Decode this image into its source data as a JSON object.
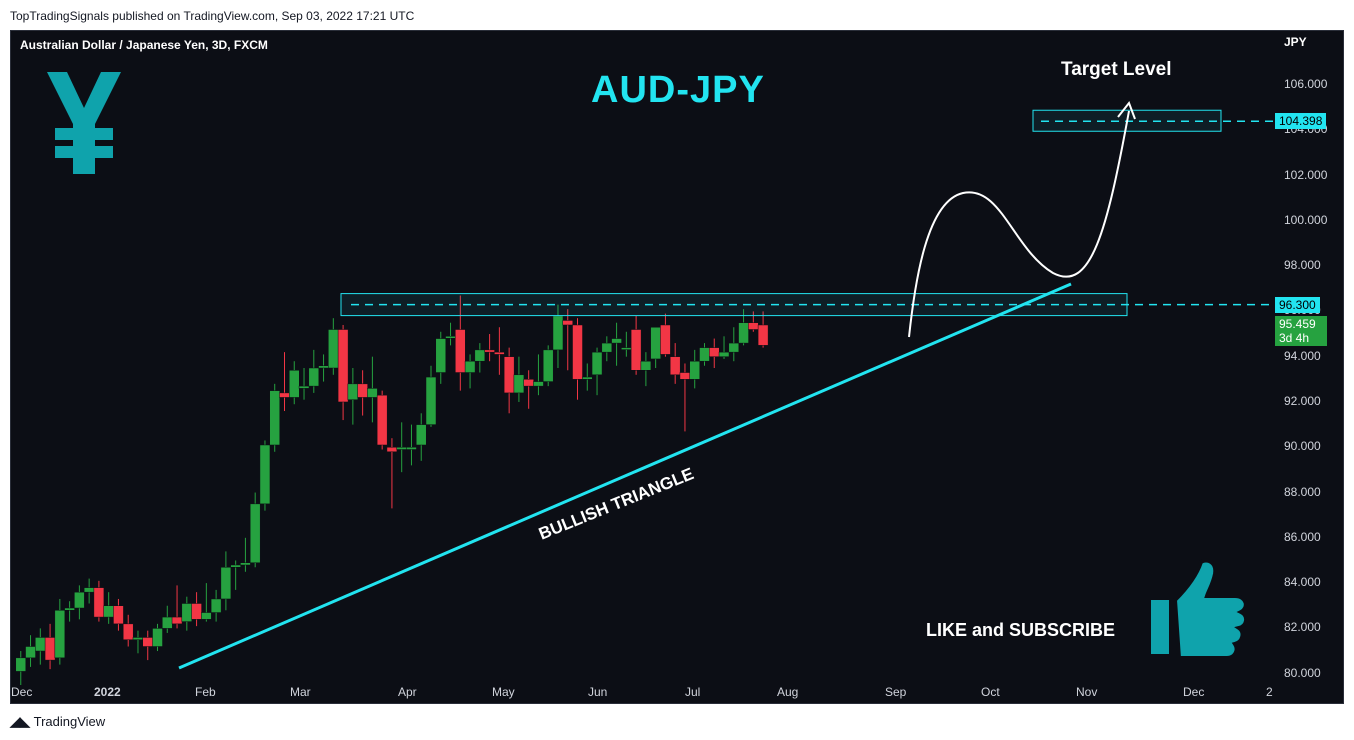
{
  "header": {
    "publish_line": "TopTradingSignals published on TradingView.com, Sep 03, 2022 17:21 UTC"
  },
  "chart_header": {
    "symbol_line": "Australian Dollar / Japanese Yen, 3D, FXCM"
  },
  "annotations": {
    "headline": "AUD-JPY",
    "target_label": "Target Level",
    "pattern_label": "BULLISH TRIANGLE",
    "cta_label": "LIKE and SUBSCRIBE"
  },
  "icons": {
    "currency_symbol": "yen-icon",
    "cta_icon": "thumbs-up-icon",
    "brand": "tradingview-logo-icon"
  },
  "footer": {
    "brand": "TradingView"
  },
  "colors": {
    "background": "#0c0e15",
    "up_candle": "#26a240",
    "down_candle": "#f23645",
    "accent_cyan": "#22e4f0",
    "annotation_white": "#ffffff"
  },
  "chart_data": {
    "type": "candlestick",
    "y_axis_unit": "JPY",
    "ylim": [
      79.5,
      107.5
    ],
    "y_ticks": [
      "80.000",
      "82.000",
      "84.000",
      "86.000",
      "88.000",
      "90.000",
      "92.000",
      "94.000",
      "96.000",
      "98.000",
      "100.000",
      "102.000",
      "104.000",
      "106.000"
    ],
    "x_ticks": [
      "Dec",
      "2022",
      "Feb",
      "Mar",
      "Apr",
      "May",
      "Jun",
      "Jul",
      "Aug",
      "Sep",
      "Oct",
      "Nov",
      "Dec",
      "2"
    ],
    "price_labels": {
      "target": "104.398",
      "resistance": "96.300",
      "last": "95.459",
      "countdown": "3d 4h"
    },
    "levels": {
      "target_level": 104.398,
      "resistance_level": 96.3
    },
    "candles": [
      {
        "date": "2021-12-01",
        "o": 80.1,
        "h": 81.0,
        "l": 79.5,
        "c": 80.7
      },
      {
        "date": "2021-12-04",
        "o": 80.7,
        "h": 81.7,
        "l": 80.3,
        "c": 81.2
      },
      {
        "date": "2021-12-07",
        "o": 81.0,
        "h": 82.0,
        "l": 80.4,
        "c": 81.6
      },
      {
        "date": "2021-12-10",
        "o": 81.6,
        "h": 82.2,
        "l": 80.2,
        "c": 80.6
      },
      {
        "date": "2021-12-13",
        "o": 80.7,
        "h": 83.3,
        "l": 80.4,
        "c": 82.8
      },
      {
        "date": "2021-12-16",
        "o": 82.8,
        "h": 83.2,
        "l": 82.3,
        "c": 82.9
      },
      {
        "date": "2021-12-19",
        "o": 82.9,
        "h": 83.9,
        "l": 82.4,
        "c": 83.6
      },
      {
        "date": "2021-12-22",
        "o": 83.6,
        "h": 84.2,
        "l": 83.1,
        "c": 83.8
      },
      {
        "date": "2021-12-25",
        "o": 83.8,
        "h": 84.1,
        "l": 82.3,
        "c": 82.5
      },
      {
        "date": "2021-12-28",
        "o": 82.5,
        "h": 83.6,
        "l": 82.2,
        "c": 83.0
      },
      {
        "date": "2021-12-31",
        "o": 83.0,
        "h": 83.3,
        "l": 81.9,
        "c": 82.2
      },
      {
        "date": "2022-01-03",
        "o": 82.2,
        "h": 82.6,
        "l": 81.2,
        "c": 81.5
      },
      {
        "date": "2022-01-06",
        "o": 81.5,
        "h": 81.9,
        "l": 80.9,
        "c": 81.6
      },
      {
        "date": "2022-01-09",
        "o": 81.6,
        "h": 81.9,
        "l": 80.6,
        "c": 81.2
      },
      {
        "date": "2022-01-12",
        "o": 81.2,
        "h": 82.2,
        "l": 81.0,
        "c": 82.0
      },
      {
        "date": "2022-01-15",
        "o": 82.0,
        "h": 83.0,
        "l": 81.8,
        "c": 82.5
      },
      {
        "date": "2022-01-18",
        "o": 82.5,
        "h": 83.9,
        "l": 82.0,
        "c": 82.2
      },
      {
        "date": "2022-01-21",
        "o": 82.3,
        "h": 83.4,
        "l": 81.9,
        "c": 83.1
      },
      {
        "date": "2022-01-24",
        "o": 83.1,
        "h": 83.6,
        "l": 82.1,
        "c": 82.4
      },
      {
        "date": "2022-01-27",
        "o": 82.4,
        "h": 84.0,
        "l": 82.3,
        "c": 82.7
      },
      {
        "date": "2022-01-30",
        "o": 82.7,
        "h": 83.7,
        "l": 82.3,
        "c": 83.3
      },
      {
        "date": "2022-02-02",
        "o": 83.3,
        "h": 85.4,
        "l": 82.8,
        "c": 84.7
      },
      {
        "date": "2022-02-05",
        "o": 84.7,
        "h": 85.0,
        "l": 83.7,
        "c": 84.8
      },
      {
        "date": "2022-02-08",
        "o": 84.8,
        "h": 86.0,
        "l": 84.5,
        "c": 84.9
      },
      {
        "date": "2022-02-11",
        "o": 84.9,
        "h": 88.0,
        "l": 84.7,
        "c": 87.5
      },
      {
        "date": "2022-02-14",
        "o": 87.5,
        "h": 90.3,
        "l": 87.2,
        "c": 90.1
      },
      {
        "date": "2022-02-17",
        "o": 90.1,
        "h": 92.8,
        "l": 89.8,
        "c": 92.5
      },
      {
        "date": "2022-02-20",
        "o": 92.4,
        "h": 94.2,
        "l": 91.6,
        "c": 92.2
      },
      {
        "date": "2022-02-23",
        "o": 92.2,
        "h": 93.8,
        "l": 91.9,
        "c": 93.4
      },
      {
        "date": "2022-02-26",
        "o": 92.6,
        "h": 93.5,
        "l": 92.1,
        "c": 92.7
      },
      {
        "date": "2022-03-01",
        "o": 92.7,
        "h": 94.3,
        "l": 92.4,
        "c": 93.5
      },
      {
        "date": "2022-03-04",
        "o": 93.5,
        "h": 94.1,
        "l": 92.9,
        "c": 93.6
      },
      {
        "date": "2022-03-07",
        "o": 93.5,
        "h": 95.7,
        "l": 93.2,
        "c": 95.2
      },
      {
        "date": "2022-03-10",
        "o": 95.2,
        "h": 95.4,
        "l": 91.2,
        "c": 92.0
      },
      {
        "date": "2022-03-13",
        "o": 92.1,
        "h": 93.5,
        "l": 91.0,
        "c": 92.8
      },
      {
        "date": "2022-03-16",
        "o": 92.8,
        "h": 93.4,
        "l": 91.4,
        "c": 92.2
      },
      {
        "date": "2022-03-19",
        "o": 92.2,
        "h": 94.0,
        "l": 91.1,
        "c": 92.6
      },
      {
        "date": "2022-03-22",
        "o": 92.3,
        "h": 92.5,
        "l": 89.9,
        "c": 90.1
      },
      {
        "date": "2022-03-25",
        "o": 90.0,
        "h": 90.4,
        "l": 87.3,
        "c": 89.8
      },
      {
        "date": "2022-03-28",
        "o": 89.9,
        "h": 91.1,
        "l": 88.9,
        "c": 90.0
      },
      {
        "date": "2022-03-31",
        "o": 89.9,
        "h": 91.0,
        "l": 89.2,
        "c": 90.0
      },
      {
        "date": "2022-04-03",
        "o": 90.1,
        "h": 91.5,
        "l": 89.4,
        "c": 91.0
      },
      {
        "date": "2022-04-06",
        "o": 91.0,
        "h": 93.6,
        "l": 90.9,
        "c": 93.1
      },
      {
        "date": "2022-04-09",
        "o": 93.3,
        "h": 95.1,
        "l": 92.8,
        "c": 94.8
      },
      {
        "date": "2022-04-12",
        "o": 94.9,
        "h": 95.5,
        "l": 94.5,
        "c": 94.9
      },
      {
        "date": "2022-04-15",
        "o": 95.2,
        "h": 96.7,
        "l": 92.5,
        "c": 93.3
      },
      {
        "date": "2022-04-18",
        "o": 93.3,
        "h": 94.1,
        "l": 92.6,
        "c": 93.8
      },
      {
        "date": "2022-04-21",
        "o": 93.8,
        "h": 94.6,
        "l": 93.3,
        "c": 94.3
      },
      {
        "date": "2022-04-24",
        "o": 94.3,
        "h": 95.0,
        "l": 93.8,
        "c": 94.2
      },
      {
        "date": "2022-04-27",
        "o": 94.2,
        "h": 95.3,
        "l": 93.2,
        "c": 94.1
      },
      {
        "date": "2022-04-30",
        "o": 94.0,
        "h": 94.4,
        "l": 91.5,
        "c": 92.4
      },
      {
        "date": "2022-05-03",
        "o": 92.4,
        "h": 94.0,
        "l": 92.0,
        "c": 93.2
      },
      {
        "date": "2022-05-06",
        "o": 93.0,
        "h": 93.4,
        "l": 91.7,
        "c": 92.7
      },
      {
        "date": "2022-05-09",
        "o": 92.7,
        "h": 94.1,
        "l": 92.3,
        "c": 92.9
      },
      {
        "date": "2022-05-12",
        "o": 92.9,
        "h": 94.5,
        "l": 92.7,
        "c": 94.3
      },
      {
        "date": "2022-05-15",
        "o": 94.3,
        "h": 96.3,
        "l": 93.5,
        "c": 95.8
      },
      {
        "date": "2022-05-18",
        "o": 95.6,
        "h": 96.1,
        "l": 93.4,
        "c": 95.4
      },
      {
        "date": "2022-05-21",
        "o": 95.4,
        "h": 95.7,
        "l": 92.1,
        "c": 93.0
      },
      {
        "date": "2022-05-24",
        "o": 93.0,
        "h": 93.7,
        "l": 92.5,
        "c": 93.1
      },
      {
        "date": "2022-05-27",
        "o": 93.2,
        "h": 94.4,
        "l": 92.3,
        "c": 94.2
      },
      {
        "date": "2022-05-30",
        "o": 94.2,
        "h": 94.9,
        "l": 93.8,
        "c": 94.6
      },
      {
        "date": "2022-06-02",
        "o": 94.6,
        "h": 95.5,
        "l": 93.6,
        "c": 94.8
      },
      {
        "date": "2022-06-05",
        "o": 94.4,
        "h": 95.1,
        "l": 94.0,
        "c": 94.4
      },
      {
        "date": "2022-06-08",
        "o": 95.2,
        "h": 95.8,
        "l": 93.2,
        "c": 93.4
      },
      {
        "date": "2022-06-11",
        "o": 93.4,
        "h": 94.2,
        "l": 92.7,
        "c": 93.8
      },
      {
        "date": "2022-06-14",
        "o": 93.9,
        "h": 95.2,
        "l": 93.5,
        "c": 95.3
      },
      {
        "date": "2022-06-17",
        "o": 95.4,
        "h": 95.9,
        "l": 94.0,
        "c": 94.1
      },
      {
        "date": "2022-06-20",
        "o": 94.0,
        "h": 94.6,
        "l": 92.8,
        "c": 93.2
      },
      {
        "date": "2022-06-23",
        "o": 93.3,
        "h": 93.7,
        "l": 90.7,
        "c": 93.0
      },
      {
        "date": "2022-06-26",
        "o": 93.0,
        "h": 94.3,
        "l": 92.6,
        "c": 93.8
      },
      {
        "date": "2022-06-29",
        "o": 93.8,
        "h": 94.6,
        "l": 93.6,
        "c": 94.4
      },
      {
        "date": "2022-07-02",
        "o": 94.4,
        "h": 94.8,
        "l": 93.5,
        "c": 94.0
      },
      {
        "date": "2022-07-05",
        "o": 94.0,
        "h": 94.9,
        "l": 93.9,
        "c": 94.2
      },
      {
        "date": "2022-07-08",
        "o": 94.2,
        "h": 95.3,
        "l": 93.8,
        "c": 94.6
      },
      {
        "date": "2022-07-11",
        "o": 94.6,
        "h": 96.1,
        "l": 94.5,
        "c": 95.5
      },
      {
        "date": "2022-07-14",
        "o": 95.5,
        "h": 96.0,
        "l": 95.1,
        "c": 95.2
      },
      {
        "date": "2022-07-17",
        "o": 95.4,
        "h": 96.0,
        "l": 94.4,
        "c": 94.5
      }
    ]
  }
}
